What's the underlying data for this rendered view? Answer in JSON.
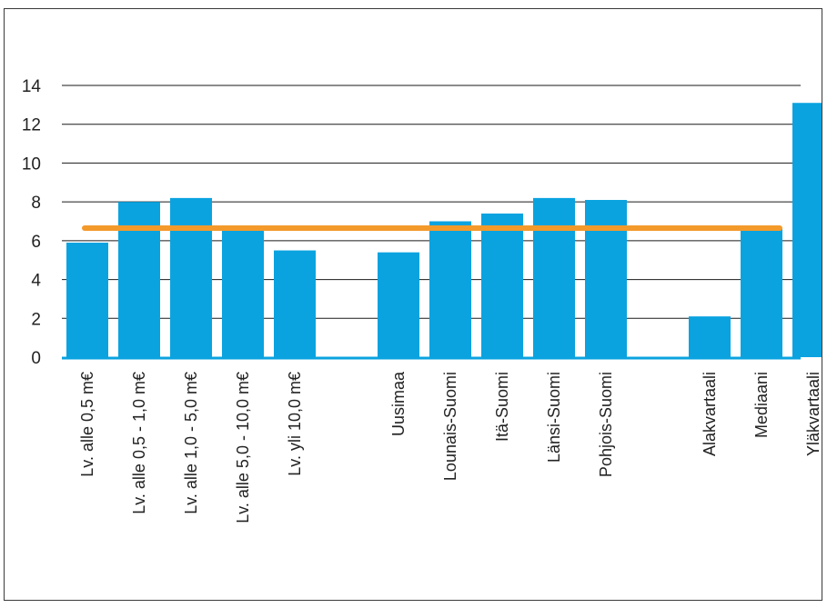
{
  "chart_data": {
    "type": "bar",
    "title": "",
    "xlabel": "",
    "ylabel": "",
    "ylim": [
      0,
      14
    ],
    "yticks": [
      0,
      2,
      4,
      6,
      8,
      10,
      12,
      14
    ],
    "grid": true,
    "legend": "none",
    "categories": [
      "Lv. alle 0,5 m€",
      "Lv. alle 0,5 - 1,0 m€",
      "Lv. alle 1,0 - 5,0 m€",
      "Lv. alle 5,0 - 10,0 m€",
      "Lv. yli 10,0 m€",
      "",
      "Uusimaa",
      "Lounais-Suomi",
      "Itä-Suomi",
      "Länsi-Suomi",
      "Pohjois-Suomi",
      "",
      "Alakvartaali",
      "Mediaani",
      "Yläkvartaali"
    ],
    "values": [
      5.9,
      8.0,
      8.2,
      6.6,
      5.5,
      null,
      5.4,
      7.0,
      7.4,
      8.2,
      8.1,
      null,
      2.1,
      6.6,
      13.1
    ],
    "reference_line": 6.65,
    "colors": {
      "bar": "#0aa3e0",
      "line": "#f39a2b",
      "grid": "#1a1a1a",
      "axis": "#0aa3e0"
    }
  }
}
